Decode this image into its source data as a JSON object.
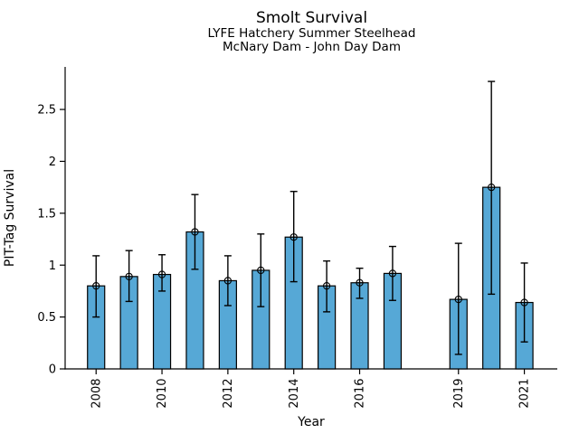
{
  "chart_data": {
    "type": "bar",
    "title": "Smolt Survival",
    "subtitle1": "LYFE Hatchery Summer Steelhead",
    "subtitle2": "McNary Dam - John Day Dam",
    "xlabel": "Year",
    "ylabel": "PIT-Tag Survival",
    "categories": [
      2008,
      2009,
      2010,
      2011,
      2012,
      2013,
      2014,
      2015,
      2016,
      2017,
      2019,
      2020,
      2021
    ],
    "values": [
      0.8,
      0.89,
      0.91,
      1.32,
      0.85,
      0.95,
      1.27,
      0.8,
      0.83,
      0.92,
      0.67,
      1.75,
      0.64
    ],
    "error_low": [
      0.5,
      0.65,
      0.75,
      0.96,
      0.61,
      0.6,
      0.84,
      0.55,
      0.68,
      0.66,
      0.14,
      0.72,
      0.26
    ],
    "error_high": [
      1.09,
      1.14,
      1.1,
      1.68,
      1.09,
      1.3,
      1.71,
      1.04,
      0.97,
      1.18,
      1.21,
      2.77,
      1.02
    ],
    "xticks": [
      2008,
      2010,
      2012,
      2014,
      2016,
      2019,
      2021
    ],
    "ytick_labels": [
      "0",
      "0.5",
      "1",
      "1.5",
      "2",
      "2.5"
    ],
    "ytick_values": [
      0,
      0.5,
      1,
      1.5,
      2,
      2.5
    ],
    "xlim": [
      2007.06,
      2022.0
    ],
    "ylim": [
      0,
      2.91
    ],
    "grid": false,
    "legend": null,
    "marker": "open-circle-plus",
    "missing_years": [
      2018
    ],
    "colors": {
      "bar_fill": "#56A8D6",
      "bar_edge": "#000000",
      "error_bar": "#000000",
      "axis": "#000000",
      "text": "#000000",
      "background": "#FFFFFF"
    }
  }
}
